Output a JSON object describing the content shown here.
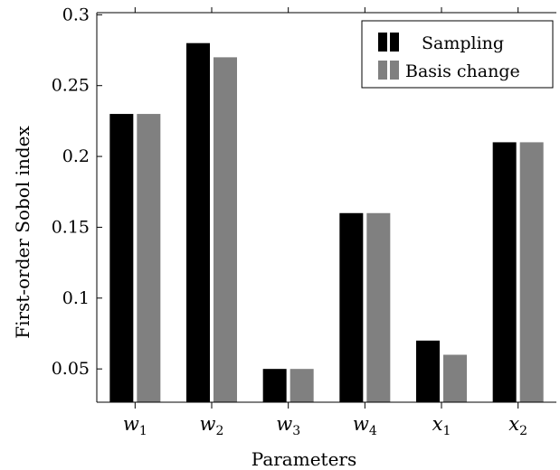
{
  "chart_data": {
    "type": "bar",
    "xlabel": "Parameters",
    "ylabel": "First-order Sobol index",
    "categories": [
      "w1",
      "w2",
      "w3",
      "w4",
      "x1",
      "x2"
    ],
    "category_labels": [
      {
        "base": "w",
        "sub": "1"
      },
      {
        "base": "w",
        "sub": "2"
      },
      {
        "base": "w",
        "sub": "3"
      },
      {
        "base": "w",
        "sub": "4"
      },
      {
        "base": "x",
        "sub": "1"
      },
      {
        "base": "x",
        "sub": "2"
      }
    ],
    "series": [
      {
        "name": "Sampling",
        "color": "#000000",
        "values": [
          0.23,
          0.28,
          0.05,
          0.16,
          0.07,
          0.21
        ]
      },
      {
        "name": "Basis change",
        "color": "#808080",
        "values": [
          0.23,
          0.27,
          0.05,
          0.16,
          0.06,
          0.21
        ]
      }
    ],
    "ylim": [
      0.0265,
      0.3015
    ],
    "yticks": [
      0.05,
      0.1,
      0.15,
      0.2,
      0.25,
      0.3
    ],
    "ytick_labels": [
      "0.05",
      "0.1",
      "0.15",
      "0.2",
      "0.25",
      "0.3"
    ],
    "legend_position": "top-right",
    "grid": false
  }
}
